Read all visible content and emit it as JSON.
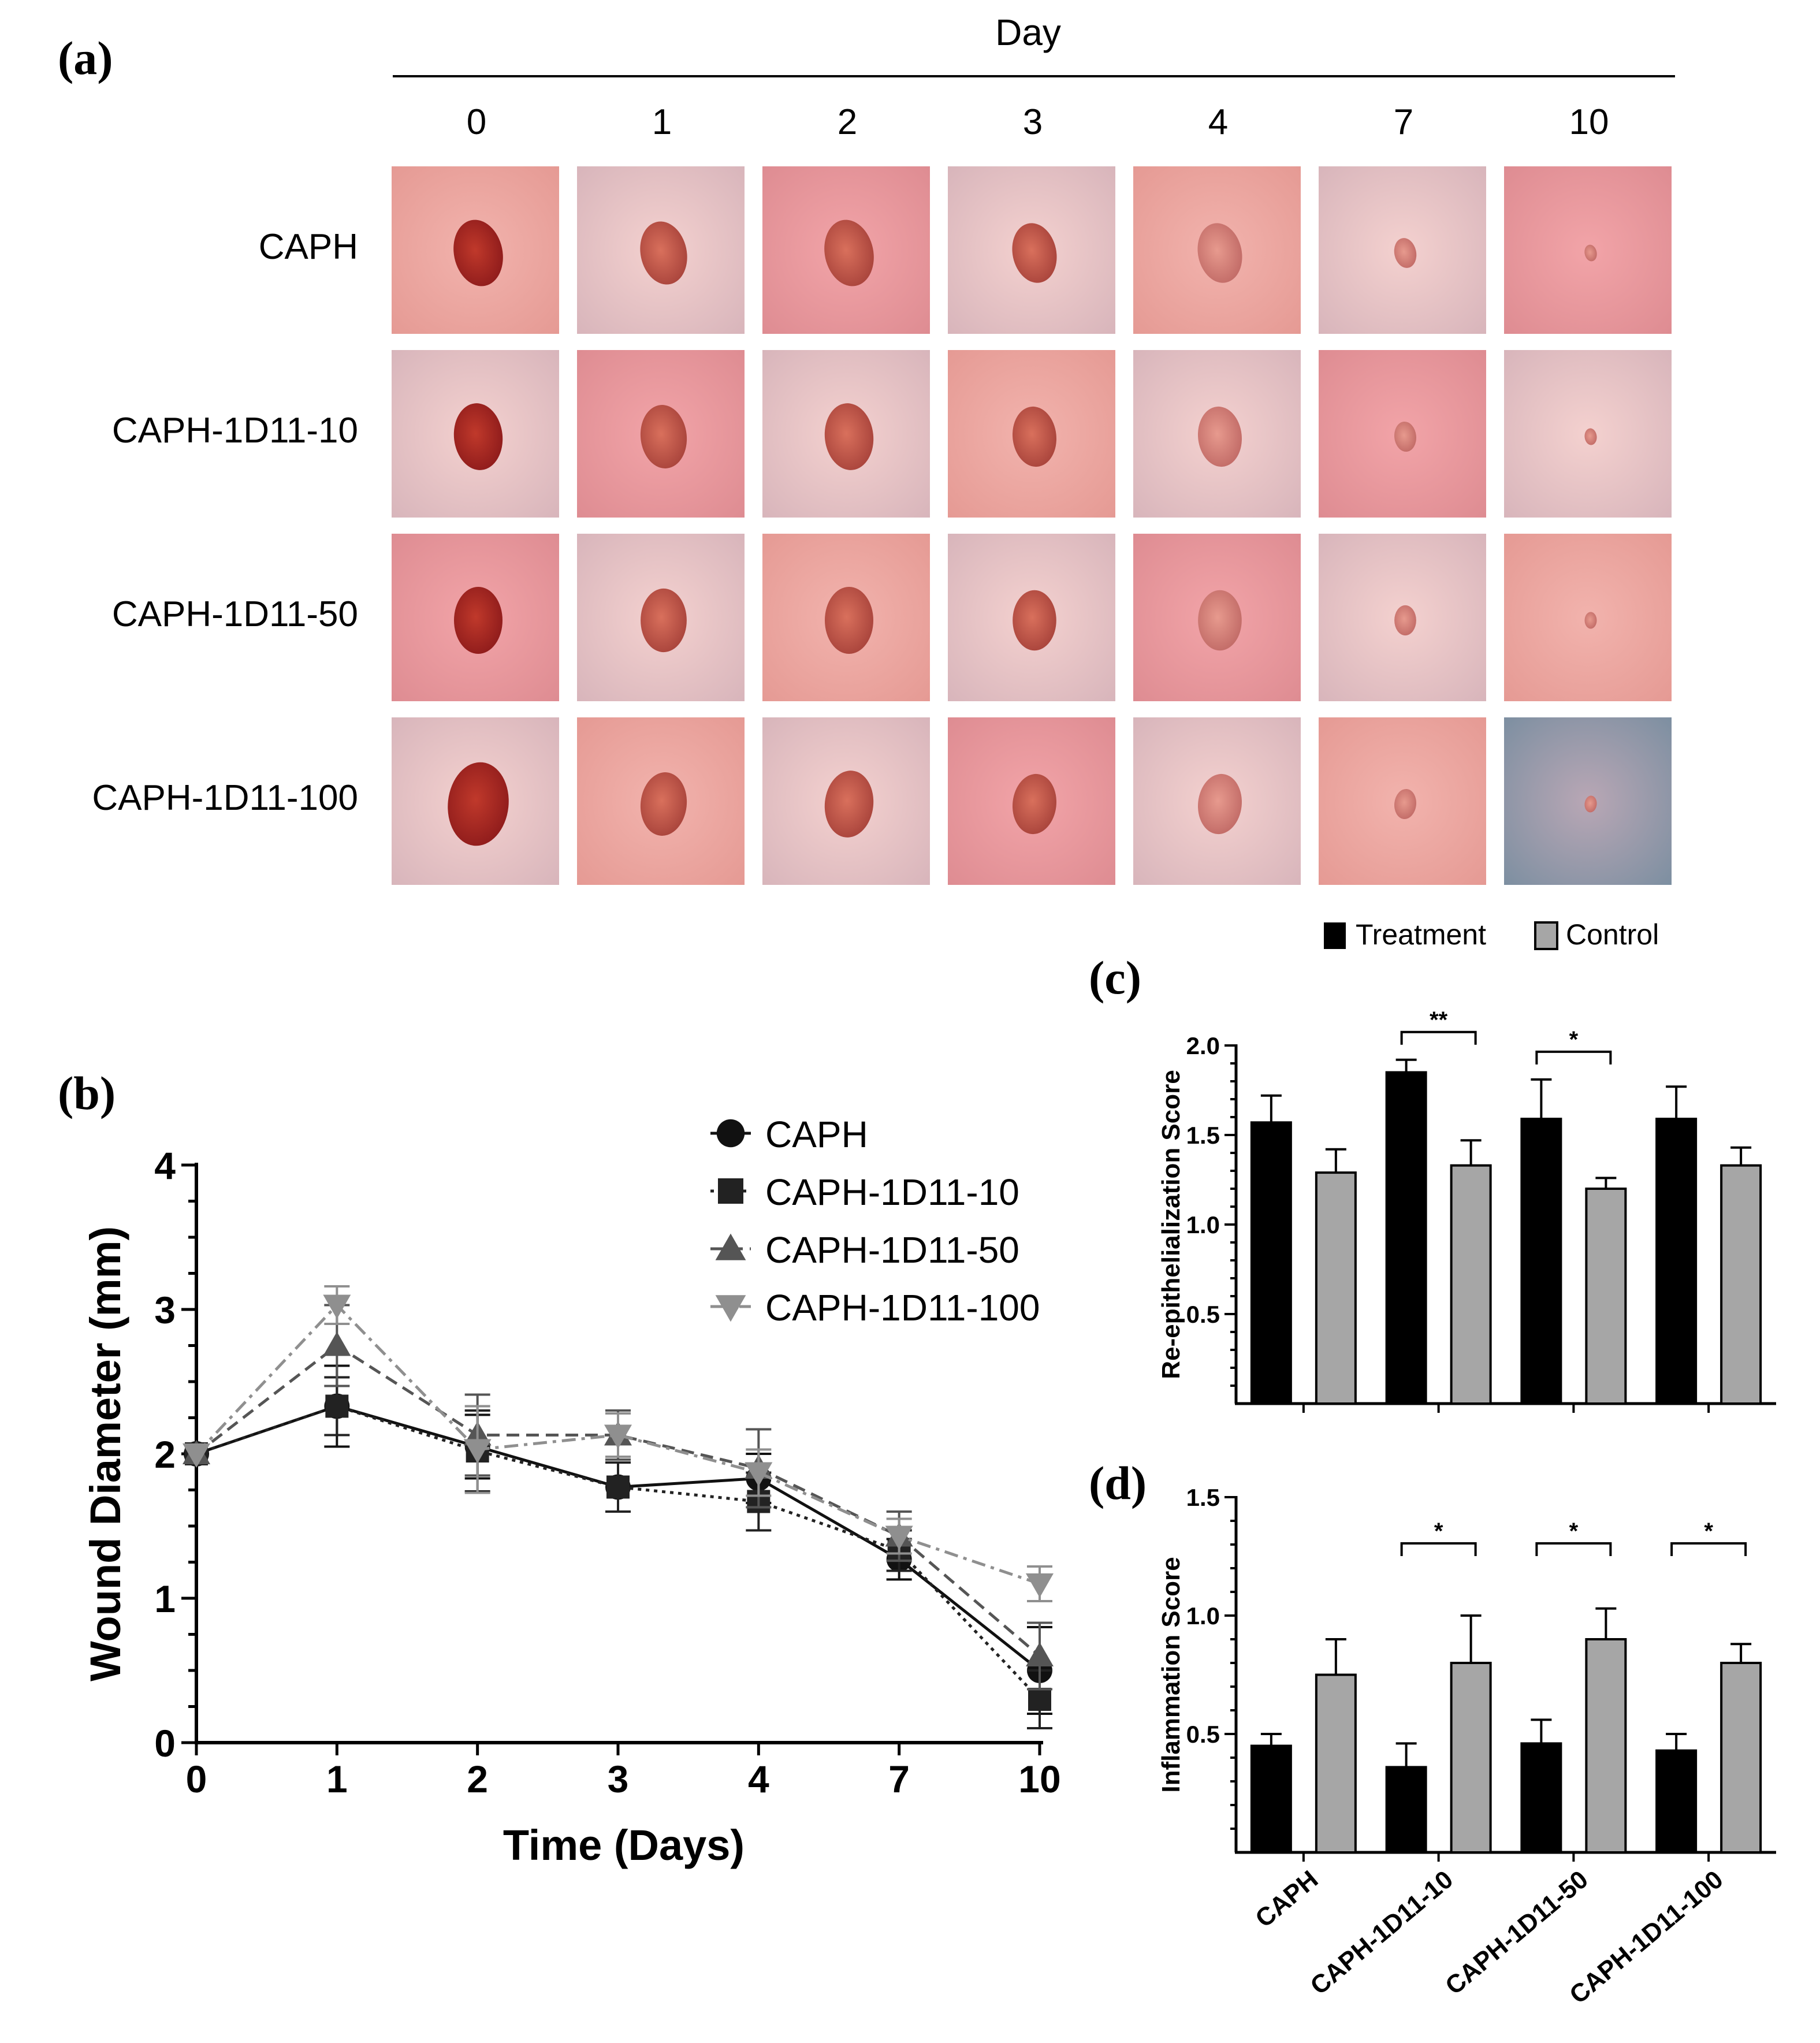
{
  "panel_labels": {
    "a": "(a)",
    "b": "(b)",
    "c": "(c)",
    "d": "(d)"
  },
  "photo_grid": {
    "header": "Day",
    "days": [
      "0",
      "1",
      "2",
      "3",
      "4",
      "7",
      "10"
    ],
    "groups": [
      "CAPH",
      "CAPH-1D11-10",
      "CAPH-1D11-50",
      "CAPH-1D11-100"
    ]
  },
  "bar_legend": {
    "treatment": "Treatment",
    "control": "Control"
  },
  "colors": {
    "treatment": "#000000",
    "control": "#a6a6a6",
    "axis": "#000000",
    "caph": "#111111",
    "d10": "#222222",
    "d50": "#555555",
    "d100": "#8f8f8f"
  },
  "chart_data": [
    {
      "id": "b",
      "type": "line",
      "title": "",
      "xlabel": "Time (Days)",
      "ylabel": "Wound Diameter (mm)",
      "x": [
        "0",
        "1",
        "2",
        "3",
        "4",
        "7",
        "10"
      ],
      "ylim": [
        0,
        4
      ],
      "yticks": [
        "0",
        "1",
        "2",
        "3",
        "4"
      ],
      "series": [
        {
          "name": "CAPH",
          "marker": "circle",
          "dash": "solid",
          "values": [
            2.0,
            2.33,
            2.05,
            1.77,
            1.83,
            1.27,
            0.5
          ],
          "errors": [
            0,
            0.28,
            0.22,
            0.17,
            0.17,
            0.14,
            0.3
          ]
        },
        {
          "name": "CAPH-1D11-10",
          "marker": "square",
          "dash": "dotted",
          "values": [
            2.0,
            2.33,
            2.02,
            1.77,
            1.67,
            1.33,
            0.3
          ],
          "errors": [
            0,
            0.2,
            0.28,
            0.17,
            0.2,
            0.14,
            0.2
          ]
        },
        {
          "name": "CAPH-1D11-50",
          "marker": "triangle-up",
          "dash": "dashed",
          "values": [
            2.0,
            2.75,
            2.13,
            2.13,
            1.9,
            1.43,
            0.6
          ],
          "errors": [
            0,
            0.28,
            0.28,
            0.17,
            0.27,
            0.17,
            0.23
          ]
        },
        {
          "name": "CAPH-1D11-100",
          "marker": "triangle-down",
          "dash": "dashdot",
          "values": [
            2.0,
            3.03,
            2.03,
            2.13,
            1.87,
            1.43,
            1.1
          ],
          "errors": [
            0,
            0.13,
            0.3,
            0.15,
            0.16,
            0.12,
            0.12
          ]
        }
      ]
    },
    {
      "id": "c",
      "type": "bar",
      "title": "",
      "xlabel": "",
      "ylabel": "Re-epithelialization Score",
      "categories": [
        "CAPH",
        "CAPH-1D11-10",
        "CAPH-1D11-50",
        "CAPH-1D11-100"
      ],
      "ylim": [
        0,
        2.0
      ],
      "yticks": [
        "0.5",
        "1.0",
        "1.5",
        "2.0"
      ],
      "series": [
        {
          "name": "Treatment",
          "values": [
            1.57,
            1.85,
            1.59,
            1.59
          ],
          "errors": [
            0.15,
            0.07,
            0.22,
            0.18
          ]
        },
        {
          "name": "Control",
          "values": [
            1.29,
            1.33,
            1.2,
            1.33
          ],
          "errors": [
            0.13,
            0.14,
            0.06,
            0.1
          ]
        }
      ],
      "significance": [
        {
          "category": "CAPH-1D11-10",
          "label": "**"
        },
        {
          "category": "CAPH-1D11-50",
          "label": "*"
        }
      ]
    },
    {
      "id": "d",
      "type": "bar",
      "title": "",
      "xlabel": "",
      "ylabel": "Inflammation Score",
      "categories": [
        "CAPH",
        "CAPH-1D11-10",
        "CAPH-1D11-50",
        "CAPH-1D11-100"
      ],
      "ylim": [
        0,
        1.5
      ],
      "yticks": [
        "0.5",
        "1.0",
        "1.5"
      ],
      "series": [
        {
          "name": "Treatment",
          "values": [
            0.45,
            0.36,
            0.46,
            0.43
          ],
          "errors": [
            0.05,
            0.1,
            0.1,
            0.07
          ]
        },
        {
          "name": "Control",
          "values": [
            0.75,
            0.8,
            0.9,
            0.8
          ],
          "errors": [
            0.15,
            0.2,
            0.13,
            0.08
          ]
        }
      ],
      "significance": [
        {
          "category": "CAPH-1D11-10",
          "label": "*"
        },
        {
          "category": "CAPH-1D11-50",
          "label": "*"
        },
        {
          "category": "CAPH-1D11-100",
          "label": "*"
        }
      ]
    }
  ]
}
